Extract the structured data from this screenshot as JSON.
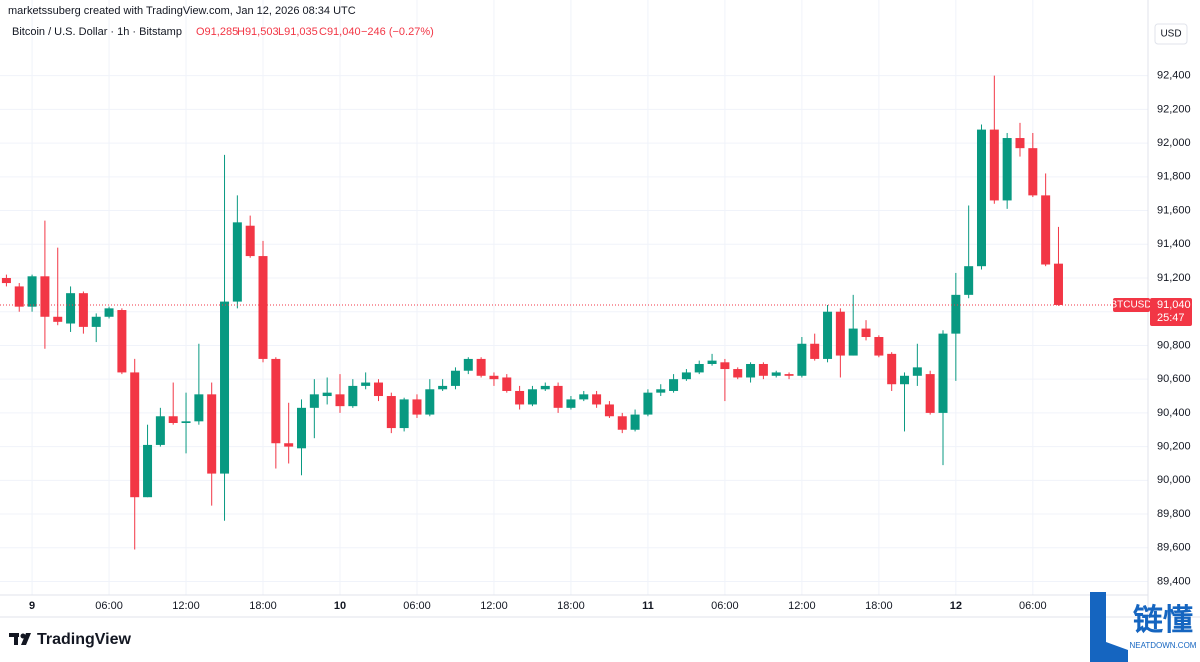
{
  "chart_data": {
    "type": "candlestick",
    "source_line": "marketssuberg created with TradingView.com, Jan 12, 2026 08:34 UTC",
    "symbol": "Bitcoin / U.S. Dollar · 1h · Bitstamp",
    "ohlc_labels": [
      "O91,285",
      "H91,503",
      "L91,035",
      "C91,040",
      "−246 (−0.27%)"
    ],
    "currency": "USD",
    "ticker": "BTCUSD",
    "last_price": {
      "value": 91040,
      "label": "91,040"
    },
    "countdown": "25:47",
    "logo": "TradingView",
    "watermark": {
      "text": "链懂",
      "site": "NEATDOWN.COM"
    },
    "up_color": "#089981",
    "down_color": "#f23645",
    "grid": true,
    "categories": [
      null,
      null,
      "9",
      null,
      null,
      null,
      null,
      null,
      "06:00",
      null,
      null,
      null,
      null,
      null,
      "12:00",
      null,
      null,
      null,
      null,
      null,
      "18:00",
      null,
      null,
      null,
      null,
      null,
      "10",
      null,
      null,
      null,
      null,
      null,
      "06:00",
      null,
      null,
      null,
      null,
      null,
      "12:00",
      null,
      null,
      null,
      null,
      null,
      "18:00",
      null,
      null,
      null,
      null,
      null,
      "11",
      null,
      null,
      null,
      null,
      null,
      "06:00",
      null,
      null,
      null,
      null,
      null,
      "12:00",
      null,
      null,
      null,
      null,
      null,
      "18:00",
      null,
      null,
      null,
      null,
      null,
      "12",
      null,
      null,
      null,
      null,
      null,
      "06:00",
      null,
      null
    ],
    "open": [
      91200,
      91150,
      91030,
      91210,
      90970,
      90930,
      91110,
      90910,
      90970,
      91010,
      90640,
      89900,
      90210,
      90380,
      90340,
      90350,
      90510,
      90040,
      91060,
      91510,
      91330,
      90720,
      90220,
      90190,
      90430,
      90500,
      90510,
      90440,
      90560,
      90580,
      90500,
      90310,
      90480,
      90390,
      90540,
      90560,
      90650,
      90720,
      90620,
      90610,
      90530,
      90450,
      90540,
      90560,
      90430,
      90480,
      90510,
      90450,
      90380,
      90300,
      90390,
      90520,
      90530,
      90600,
      90640,
      90690,
      90700,
      90660,
      90610,
      90690,
      90620,
      90630,
      90620,
      90810,
      90720,
      91000,
      90740,
      90900,
      90850,
      90750,
      90570,
      90620,
      90630,
      90400,
      90870,
      91100,
      91270,
      92080,
      91660,
      92030,
      91970,
      91690,
      91285
    ],
    "high": [
      91220,
      91170,
      91220,
      91540,
      91380,
      91150,
      91120,
      90990,
      91030,
      91020,
      90720,
      90330,
      90430,
      90580,
      90520,
      90810,
      90580,
      91930,
      91690,
      91570,
      91420,
      90730,
      90460,
      90480,
      90600,
      90610,
      90630,
      90600,
      90640,
      90600,
      90520,
      90490,
      90510,
      90600,
      90600,
      90670,
      90730,
      90730,
      90640,
      90630,
      90560,
      90560,
      90580,
      90580,
      90500,
      90530,
      90530,
      90470,
      90400,
      90420,
      90540,
      90570,
      90630,
      90660,
      90710,
      90750,
      90720,
      90670,
      90700,
      90700,
      90650,
      90640,
      90850,
      90870,
      91040,
      91020,
      91100,
      90950,
      90860,
      90760,
      90640,
      90810,
      90650,
      90890,
      91230,
      91630,
      92110,
      92400,
      92060,
      92120,
      92060,
      91820,
      91503
    ],
    "low": [
      91150,
      91000,
      91000,
      90780,
      90920,
      90880,
      90870,
      90820,
      90960,
      90630,
      89590,
      89900,
      90200,
      90330,
      90160,
      90330,
      89850,
      89760,
      91020,
      91320,
      90700,
      90070,
      90100,
      90030,
      90250,
      90450,
      90400,
      90430,
      90540,
      90470,
      90280,
      90290,
      90370,
      90380,
      90530,
      90540,
      90630,
      90610,
      90560,
      90520,
      90420,
      90440,
      90530,
      90400,
      90420,
      90470,
      90430,
      90370,
      90280,
      90290,
      90380,
      90500,
      90520,
      90590,
      90630,
      90680,
      90470,
      90600,
      90580,
      90600,
      90610,
      90600,
      90610,
      90710,
      90700,
      90610,
      90740,
      90830,
      90730,
      90530,
      90290,
      90560,
      90390,
      90090,
      90590,
      91080,
      91250,
      91640,
      91610,
      91920,
      91680,
      91270,
      91035
    ],
    "close": [
      91170,
      91030,
      91210,
      90970,
      90940,
      91110,
      90910,
      90970,
      91020,
      90640,
      89900,
      90210,
      90380,
      90340,
      90350,
      90510,
      90040,
      91060,
      91530,
      91330,
      90720,
      90220,
      90200,
      90430,
      90510,
      90520,
      90440,
      90560,
      90580,
      90500,
      90310,
      90480,
      90390,
      90540,
      90560,
      90650,
      90720,
      90620,
      90600,
      90530,
      90450,
      90540,
      90560,
      90430,
      90480,
      90510,
      90450,
      90380,
      90300,
      90390,
      90520,
      90540,
      90600,
      90640,
      90690,
      90710,
      90660,
      90610,
      90690,
      90620,
      90640,
      90620,
      90810,
      90720,
      91000,
      90740,
      90900,
      90850,
      90740,
      90570,
      90620,
      90670,
      90400,
      90870,
      91100,
      91270,
      92080,
      91660,
      92030,
      91970,
      91690,
      91280,
      91040
    ],
    "ylim": [
      89320,
      92730
    ],
    "yticks": [
      {
        "value": 89400,
        "label": "89,400"
      },
      {
        "value": 89600,
        "label": "89,600"
      },
      {
        "value": 89800,
        "label": "89,800"
      },
      {
        "value": 90000,
        "label": "90,000"
      },
      {
        "value": 90200,
        "label": "90,200"
      },
      {
        "value": 90400,
        "label": "90,400"
      },
      {
        "value": 90600,
        "label": "90,600"
      },
      {
        "value": 90800,
        "label": "90,800"
      },
      {
        "value": 91000,
        "label": "91,000"
      },
      {
        "value": 91200,
        "label": "91,200"
      },
      {
        "value": 91400,
        "label": "91,400"
      },
      {
        "value": 91600,
        "label": "91,600"
      },
      {
        "value": 91800,
        "label": "91,800"
      },
      {
        "value": 92000,
        "label": "92,000"
      },
      {
        "value": 92200,
        "label": "92,200"
      },
      {
        "value": 92400,
        "label": "92,400"
      }
    ]
  }
}
